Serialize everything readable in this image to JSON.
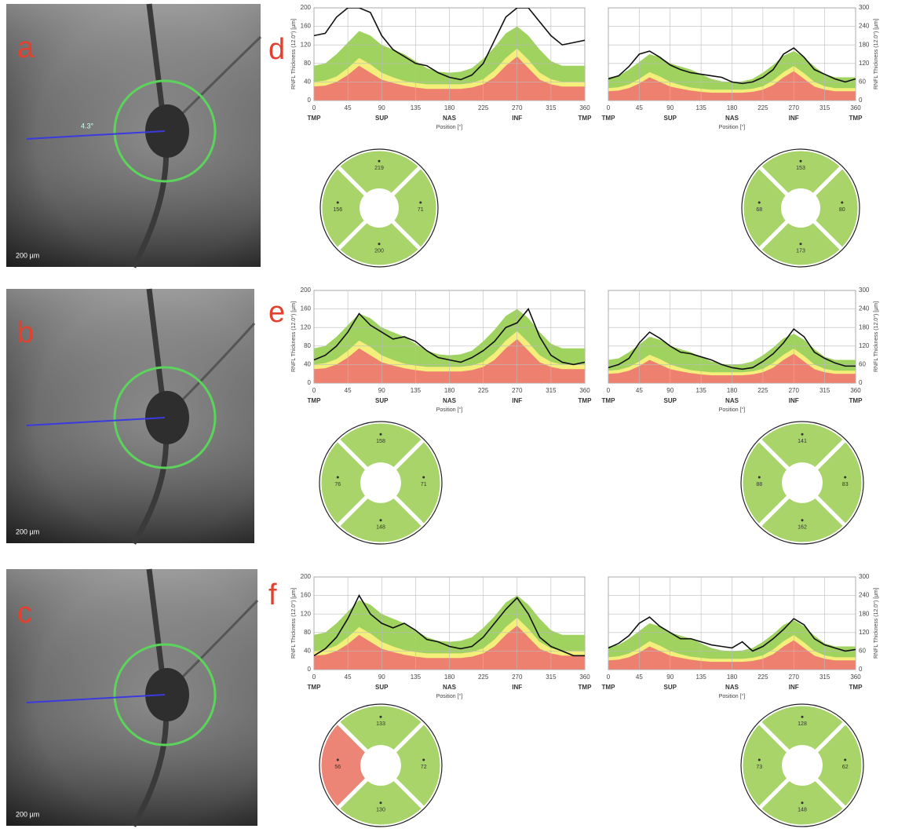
{
  "panels": [
    "a",
    "b",
    "c",
    "d",
    "e",
    "f"
  ],
  "fundus": [
    {
      "scale": "200 µm",
      "angle": "4.3°"
    },
    {
      "scale": "200 µm"
    },
    {
      "scale": "200 µm"
    }
  ],
  "normative": {
    "x": [
      0,
      15,
      30,
      45,
      60,
      75,
      90,
      105,
      120,
      135,
      150,
      165,
      180,
      195,
      210,
      225,
      240,
      255,
      270,
      285,
      300,
      315,
      330,
      345,
      360
    ],
    "bands": [
      {
        "color": "#9fd25f",
        "values": [
          75,
          80,
          100,
          125,
          150,
          140,
          120,
          110,
          100,
          85,
          70,
          62,
          60,
          62,
          70,
          90,
          115,
          145,
          160,
          140,
          110,
          85,
          75,
          75,
          75
        ]
      },
      {
        "color": "#f3ef7a",
        "values": [
          40,
          43,
          52,
          70,
          92,
          78,
          60,
          50,
          42,
          38,
          35,
          35,
          35,
          35,
          38,
          46,
          65,
          92,
          112,
          88,
          60,
          46,
          40,
          40,
          40
        ]
      },
      {
        "color": "#ee8070",
        "values": [
          30,
          32,
          40,
          55,
          75,
          60,
          45,
          38,
          32,
          28,
          25,
          25,
          25,
          25,
          28,
          35,
          50,
          75,
          95,
          70,
          45,
          35,
          30,
          30,
          30
        ]
      }
    ]
  },
  "chart_data": [
    {
      "type": "line",
      "ylabel": "RNFL Thickness (12.0°) [µm]",
      "xlabel": "Position [°]",
      "xlim": [
        0,
        360
      ],
      "xticks": [
        0,
        45,
        90,
        135,
        180,
        225,
        270,
        315,
        360
      ],
      "ylim": [
        0,
        200
      ],
      "yticks": [
        0,
        40,
        80,
        120,
        160,
        200
      ],
      "categories": [
        "TMP",
        "SUP",
        "NAS",
        "INF",
        "TMP"
      ],
      "x": [
        0,
        15,
        30,
        45,
        60,
        75,
        90,
        105,
        120,
        135,
        150,
        165,
        180,
        195,
        210,
        225,
        240,
        255,
        270,
        285,
        300,
        315,
        330,
        345,
        360
      ],
      "series": [
        {
          "color": "#111111",
          "values": [
            140,
            145,
            180,
            200,
            200,
            190,
            140,
            110,
            95,
            80,
            75,
            60,
            50,
            45,
            55,
            80,
            130,
            180,
            200,
            200,
            170,
            140,
            120,
            125,
            130
          ]
        }
      ]
    },
    {
      "type": "line",
      "ylabel": "RNFL Thickness (12.0°) [µm]",
      "xlabel": "Position [°]",
      "xlim": [
        0,
        360
      ],
      "xticks": [
        0,
        45,
        90,
        135,
        180,
        225,
        270,
        315,
        360
      ],
      "ylim": [
        0,
        300
      ],
      "yticks": [
        0,
        60,
        120,
        180,
        240,
        300
      ],
      "categories": [
        "TMP",
        "SUP",
        "NAS",
        "INF",
        "TMP"
      ],
      "x": [
        0,
        15,
        30,
        45,
        60,
        75,
        90,
        105,
        120,
        135,
        150,
        165,
        180,
        195,
        210,
        225,
        240,
        255,
        270,
        285,
        300,
        315,
        330,
        345,
        360
      ],
      "series": [
        {
          "color": "#111111",
          "values": [
            70,
            80,
            110,
            150,
            160,
            140,
            115,
            100,
            90,
            85,
            80,
            75,
            60,
            55,
            60,
            75,
            100,
            150,
            170,
            140,
            100,
            85,
            70,
            60,
            70
          ]
        }
      ]
    },
    {
      "type": "line",
      "ylabel": "RNFL Thickness (12.0°) [µm]",
      "xlabel": "Position [°]",
      "xlim": [
        0,
        360
      ],
      "xticks": [
        0,
        45,
        90,
        135,
        180,
        225,
        270,
        315,
        360
      ],
      "ylim": [
        0,
        200
      ],
      "yticks": [
        0,
        40,
        80,
        120,
        160,
        200
      ],
      "categories": [
        "TMP",
        "SUP",
        "NAS",
        "INF",
        "TMP"
      ],
      "x": [
        0,
        15,
        30,
        45,
        60,
        75,
        90,
        105,
        120,
        135,
        150,
        165,
        180,
        195,
        210,
        225,
        240,
        255,
        270,
        285,
        300,
        315,
        330,
        345,
        360
      ],
      "series": [
        {
          "color": "#111111",
          "values": [
            50,
            60,
            80,
            110,
            150,
            125,
            110,
            95,
            100,
            90,
            70,
            55,
            50,
            45,
            55,
            70,
            90,
            120,
            130,
            160,
            100,
            60,
            45,
            40,
            45
          ]
        }
      ]
    },
    {
      "type": "line",
      "ylabel": "RNFL Thickness (12.0°) [µm]",
      "xlabel": "Position [°]",
      "xlim": [
        0,
        360
      ],
      "xticks": [
        0,
        45,
        90,
        135,
        180,
        225,
        270,
        315,
        360
      ],
      "ylim": [
        0,
        300
      ],
      "yticks": [
        0,
        60,
        120,
        180,
        240,
        300
      ],
      "categories": [
        "TMP",
        "SUP",
        "NAS",
        "INF",
        "TMP"
      ],
      "x": [
        0,
        15,
        30,
        45,
        60,
        75,
        90,
        105,
        120,
        135,
        150,
        165,
        180,
        195,
        210,
        225,
        240,
        255,
        270,
        285,
        300,
        315,
        330,
        345,
        360
      ],
      "series": [
        {
          "color": "#111111",
          "values": [
            50,
            60,
            80,
            130,
            165,
            145,
            120,
            100,
            95,
            85,
            75,
            60,
            50,
            45,
            50,
            70,
            95,
            130,
            175,
            150,
            100,
            80,
            65,
            55,
            55
          ]
        }
      ]
    },
    {
      "type": "line",
      "ylabel": "RNFL Thickness (12.0°) [µm]",
      "xlabel": "Position [°]",
      "xlim": [
        0,
        360
      ],
      "xticks": [
        0,
        45,
        90,
        135,
        180,
        225,
        270,
        315,
        360
      ],
      "ylim": [
        0,
        200
      ],
      "yticks": [
        0,
        40,
        80,
        120,
        160,
        200
      ],
      "categories": [
        "TMP",
        "SUP",
        "NAS",
        "INF",
        "TMP"
      ],
      "x": [
        0,
        15,
        30,
        45,
        60,
        75,
        90,
        105,
        120,
        135,
        150,
        165,
        180,
        195,
        210,
        225,
        240,
        255,
        270,
        285,
        300,
        315,
        330,
        345,
        360
      ],
      "series": [
        {
          "color": "#111111",
          "values": [
            30,
            45,
            70,
            110,
            160,
            120,
            100,
            90,
            100,
            85,
            65,
            60,
            50,
            45,
            50,
            70,
            100,
            130,
            155,
            120,
            70,
            50,
            40,
            30,
            30
          ]
        }
      ]
    },
    {
      "type": "line",
      "ylabel": "RNFL Thickness (12.0°) [µm]",
      "xlabel": "Position [°]",
      "xlim": [
        0,
        360
      ],
      "xticks": [
        0,
        45,
        90,
        135,
        180,
        225,
        270,
        315,
        360
      ],
      "ylim": [
        0,
        300
      ],
      "yticks": [
        0,
        60,
        120,
        180,
        240,
        300
      ],
      "categories": [
        "TMP",
        "SUP",
        "NAS",
        "INF",
        "TMP"
      ],
      "x": [
        0,
        15,
        30,
        45,
        60,
        75,
        90,
        105,
        120,
        135,
        150,
        165,
        180,
        195,
        210,
        225,
        240,
        255,
        270,
        285,
        300,
        315,
        330,
        345,
        360
      ],
      "series": [
        {
          "color": "#111111",
          "values": [
            70,
            85,
            110,
            150,
            170,
            140,
            120,
            100,
            100,
            90,
            80,
            75,
            70,
            90,
            60,
            75,
            100,
            130,
            165,
            145,
            100,
            80,
            70,
            60,
            65
          ]
        }
      ]
    }
  ],
  "sectors": [
    {
      "values": [
        219,
        71,
        200,
        156
      ],
      "colors": [
        "#a8d46a",
        "#a8d46a",
        "#a8d46a",
        "#a8d46a"
      ]
    },
    {
      "values": [
        153,
        80,
        173,
        68
      ],
      "colors": [
        "#a8d46a",
        "#a8d46a",
        "#a8d46a",
        "#a8d46a"
      ]
    },
    {
      "values": [
        158,
        71,
        148,
        76
      ],
      "colors": [
        "#a8d46a",
        "#a8d46a",
        "#a8d46a",
        "#a8d46a"
      ]
    },
    {
      "values": [
        141,
        83,
        162,
        88
      ],
      "colors": [
        "#a8d46a",
        "#a8d46a",
        "#a8d46a",
        "#a8d46a"
      ]
    },
    {
      "values": [
        133,
        72,
        130,
        56
      ],
      "colors": [
        "#a8d46a",
        "#a8d46a",
        "#a8d46a",
        "#ec8576"
      ]
    },
    {
      "values": [
        128,
        62,
        148,
        73
      ],
      "colors": [
        "#a8d46a",
        "#a8d46a",
        "#a8d46a",
        "#a8d46a"
      ]
    }
  ]
}
